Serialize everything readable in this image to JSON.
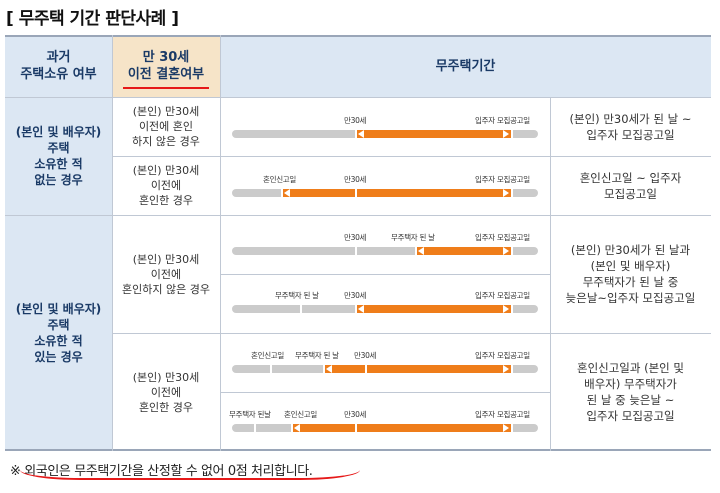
{
  "title": "[ 무주택 기간 판단사례 ]",
  "headers": {
    "col1": "과거\n주택소유 여부",
    "col2": "만 30세\n이전 결혼여부",
    "col3": "무주택기간"
  },
  "groups": [
    {
      "label": "(본인 및 배우자)\n주택\n소유한 적\n없는 경우",
      "rows": [
        {
          "condition": "(본인) 만30세\n이전에 혼인\n하지 않은 경우",
          "result": "(본인) 만30세가 된 날 ~\n입주자 모집공고일",
          "timelines": [
            {
              "labels": [
                "만30세",
                "입주자 모집공고일"
              ]
            }
          ]
        },
        {
          "condition": "(본인) 만30세\n이전에\n혼인한 경우",
          "result": "혼인신고일 ~ 입주자\n모집공고일",
          "timelines": [
            {
              "labels": [
                "혼인신고일",
                "만30세",
                "입주자 모집공고일"
              ]
            }
          ]
        }
      ]
    },
    {
      "label": "(본인 및 배우자)\n주택\n소유한 적\n있는 경우",
      "rows": [
        {
          "condition": "(본인) 만30세\n이전에\n혼인하지 않은 경우",
          "result": "(본인) 만30세가 된 날과\n(본인 및 배우자)\n무주택자가 된 날 중\n늦은날~입주자 모집공고일",
          "timelines": [
            {
              "labels": [
                "만30세",
                "무주택자 된 날",
                "입주자 모집공고일"
              ]
            },
            {
              "labels": [
                "무주택자 된 날",
                "만30세",
                "입주자 모집공고일"
              ]
            }
          ]
        },
        {
          "condition": "(본인) 만30세\n이전에\n혼인한 경우",
          "result": "혼인신고일과 (본인 및\n배우자) 무주택자가\n된 날 중 늦은날 ~\n입주자 모집공고일",
          "timelines": [
            {
              "labels": [
                "혼인신고일",
                "무주택자 된 날",
                "만30세",
                "입주자 모집공고일"
              ]
            },
            {
              "labels": [
                "무주택자 된날",
                "혼인신고일",
                "만30세",
                "입주자 모집공고일"
              ]
            }
          ]
        }
      ]
    }
  ],
  "note": "※ 외국인은 무주택기간을 산정할 수 없어 0점 처리합니다.",
  "colors": {
    "header_bg": "#dce7f3",
    "highlight_header_bg": "#f6e4c8",
    "accent_orange": "#ef7d1a",
    "timeline_gray": "#cbcbcb",
    "underline_red": "#e61919"
  }
}
